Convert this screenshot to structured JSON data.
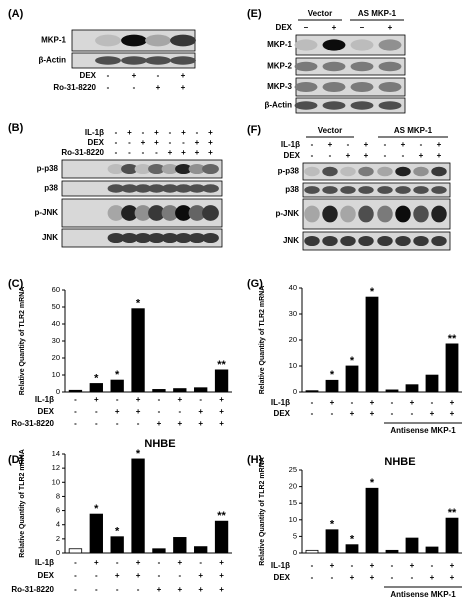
{
  "blots": [
    {
      "panel": "(A)",
      "rows": [
        "MKP-1",
        "β-Actin"
      ],
      "conditions": [
        {
          "name": "DEX",
          "signs": [
            "-",
            "+",
            "-",
            "+"
          ]
        },
        {
          "name": "Ro-31-8220",
          "signs": [
            "-",
            "-",
            "+",
            "+"
          ]
        }
      ]
    },
    {
      "panel": "(B)",
      "rows": [
        "p-p38",
        "p38",
        "p-JNK",
        "JNK"
      ],
      "conditions": [
        {
          "name": "IL-1β",
          "signs": [
            "-",
            "+",
            "-",
            "+",
            "-",
            "+",
            "-",
            "+"
          ]
        },
        {
          "name": "DEX",
          "signs": [
            "-",
            "-",
            "+",
            "+",
            "-",
            "-",
            "+",
            "+"
          ]
        },
        {
          "name": "Ro-31-8220",
          "signs": [
            "-",
            "-",
            "-",
            "-",
            "+",
            "+",
            "+",
            "+"
          ]
        }
      ]
    },
    {
      "panel": "(E)",
      "groups": [
        "Vector",
        "AS MKP-1"
      ],
      "rows": [
        "MKP-1",
        "MKP-2",
        "MKP-3",
        "β-Actin"
      ],
      "conditions": [
        {
          "name": "DEX",
          "signs": [
            "–",
            "+",
            "–",
            "+"
          ]
        }
      ]
    },
    {
      "panel": "(F)",
      "groups": [
        "Vector",
        "AS MKP-1"
      ],
      "rows": [
        "p-p38",
        "p38",
        "p-JNK",
        "JNK"
      ],
      "conditions": [
        {
          "name": "IL-1β",
          "signs": [
            "-",
            "+",
            "-",
            "+",
            "-",
            "+",
            "-",
            "+"
          ]
        },
        {
          "name": "DEX",
          "signs": [
            "-",
            "-",
            "+",
            "+",
            "-",
            "-",
            "+",
            "+"
          ]
        }
      ]
    }
  ],
  "chart_data": [
    {
      "type": "bar",
      "panel": "(C)",
      "ylabel": "Relative Quantity of TLR2 mRNA",
      "values": [
        1,
        5,
        7,
        49,
        1.5,
        2,
        2.5,
        13
      ],
      "colors": [
        "#000000",
        "#000000",
        "#000000",
        "#000000",
        "#000000",
        "#000000",
        "#000000",
        "#000000"
      ],
      "annotations": [
        null,
        "*",
        "*",
        "*",
        null,
        null,
        null,
        "**"
      ],
      "ylim": [
        0,
        60
      ],
      "yticks": [
        0,
        10,
        20,
        30,
        40,
        50,
        60
      ],
      "conditions": [
        {
          "name": "IL-1β",
          "signs": [
            "-",
            "+",
            "-",
            "+",
            "-",
            "+",
            "-",
            "+"
          ]
        },
        {
          "name": "DEX",
          "signs": [
            "-",
            "-",
            "+",
            "+",
            "-",
            "-",
            "+",
            "+"
          ]
        },
        {
          "name": "Ro-31-8220",
          "signs": [
            "-",
            "-",
            "-",
            "-",
            "+",
            "+",
            "+",
            "+"
          ]
        }
      ]
    },
    {
      "type": "bar",
      "panel": "(D)",
      "title": "NHBE",
      "ylabel": "Relative Quantity of TLR2 mRNA",
      "values": [
        0.6,
        5.5,
        2.3,
        13.3,
        0.6,
        2.2,
        0.9,
        4.5
      ],
      "colors": [
        "#ffffff",
        "#000000",
        "#000000",
        "#000000",
        "#000000",
        "#000000",
        "#000000",
        "#000000"
      ],
      "annotations": [
        null,
        "*",
        "*",
        "*",
        null,
        null,
        null,
        "**"
      ],
      "ylim": [
        0,
        14
      ],
      "yticks": [
        0,
        2,
        4,
        6,
        8,
        10,
        12,
        14
      ],
      "conditions": [
        {
          "name": "IL-1β",
          "signs": [
            "-",
            "+",
            "-",
            "+",
            "-",
            "+",
            "-",
            "+"
          ]
        },
        {
          "name": "DEX",
          "signs": [
            "-",
            "-",
            "+",
            "+",
            "-",
            "-",
            "+",
            "+"
          ]
        },
        {
          "name": "Ro-31-8220",
          "signs": [
            "-",
            "-",
            "-",
            "-",
            "+",
            "+",
            "+",
            "+"
          ]
        }
      ]
    },
    {
      "type": "bar",
      "panel": "(G)",
      "ylabel": "Relative Quantity of TLR2 mRNA",
      "values": [
        0.5,
        4.5,
        10,
        36.5,
        0.8,
        2.8,
        6.5,
        18.5
      ],
      "colors": [
        "#000000",
        "#000000",
        "#000000",
        "#000000",
        "#000000",
        "#000000",
        "#000000",
        "#000000"
      ],
      "annotations": [
        null,
        "*",
        "*",
        "*",
        null,
        null,
        null,
        "**"
      ],
      "ylim": [
        0,
        40
      ],
      "yticks": [
        0,
        10,
        20,
        30,
        40
      ],
      "group_label": "Antisense MKP-1",
      "conditions": [
        {
          "name": "IL-1β",
          "signs": [
            "-",
            "+",
            "-",
            "+",
            "-",
            "+",
            "-",
            "+"
          ]
        },
        {
          "name": "DEX",
          "signs": [
            "-",
            "-",
            "+",
            "+",
            "-",
            "-",
            "+",
            "+"
          ]
        }
      ]
    },
    {
      "type": "bar",
      "panel": "(H)",
      "title": "NHBE",
      "ylabel": "Relative Quantity of TLR2 mRNA",
      "values": [
        0.8,
        7,
        2.5,
        19.5,
        0.8,
        4.5,
        1.8,
        10.5
      ],
      "colors": [
        "#ffffff",
        "#000000",
        "#000000",
        "#000000",
        "#000000",
        "#000000",
        "#000000",
        "#000000"
      ],
      "annotations": [
        null,
        "*",
        "*",
        "*",
        null,
        null,
        null,
        "**"
      ],
      "ylim": [
        0,
        25
      ],
      "yticks": [
        0,
        5,
        10,
        15,
        20,
        25
      ],
      "group_label": "Antisense MKP-1",
      "conditions": [
        {
          "name": "IL-1β",
          "signs": [
            "-",
            "+",
            "-",
            "+",
            "-",
            "+",
            "-",
            "+"
          ]
        },
        {
          "name": "DEX",
          "signs": [
            "-",
            "-",
            "+",
            "+",
            "-",
            "-",
            "+",
            "+"
          ]
        }
      ]
    }
  ]
}
